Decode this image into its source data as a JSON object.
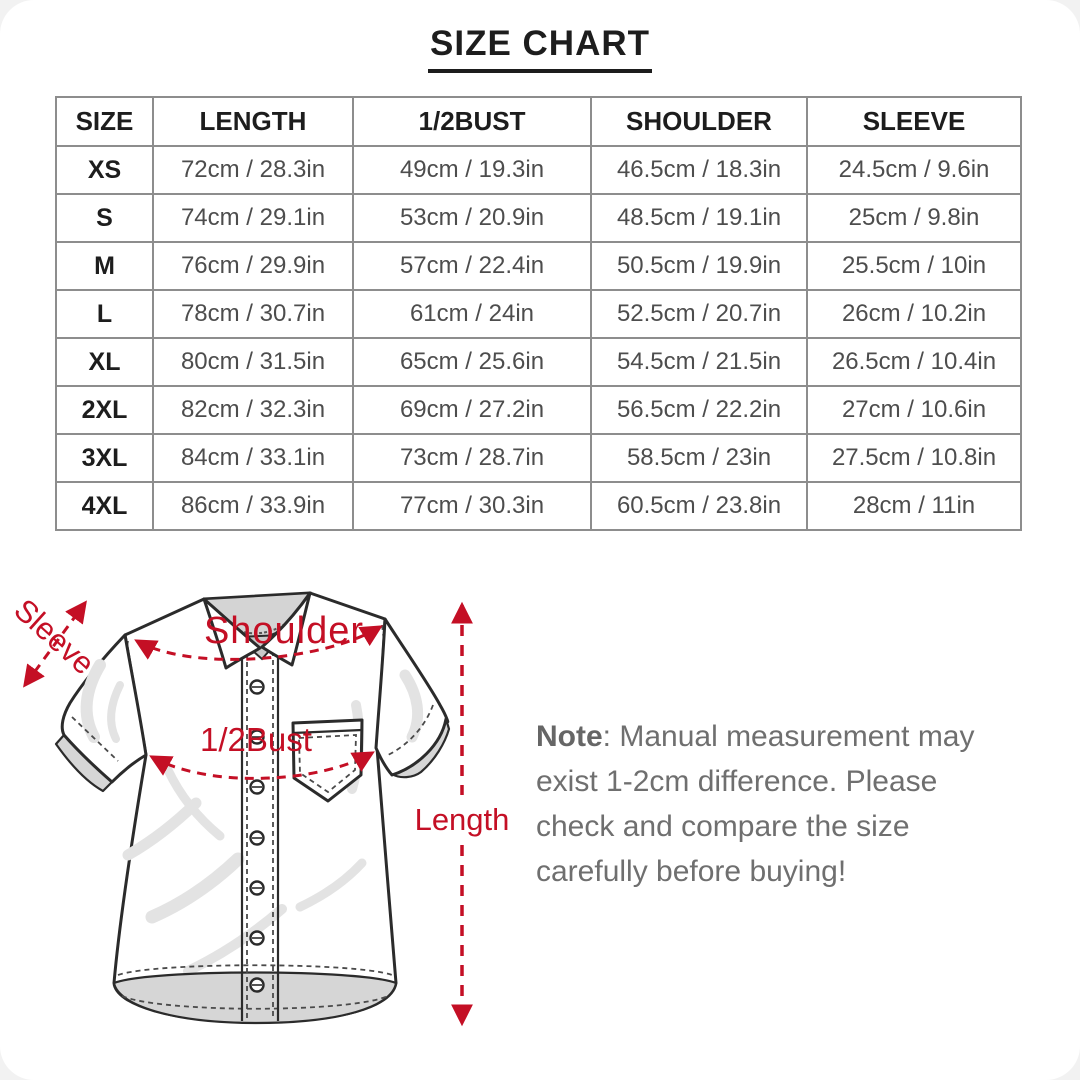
{
  "header": {
    "title": "SIZE CHART"
  },
  "size_table": {
    "columns": [
      "SIZE",
      "LENGTH",
      "1/2BUST",
      "SHOULDER",
      "SLEEVE"
    ],
    "rows": [
      [
        "XS",
        "72cm / 28.3in",
        "49cm / 19.3in",
        "46.5cm / 18.3in",
        "24.5cm / 9.6in"
      ],
      [
        "S",
        "74cm / 29.1in",
        "53cm / 20.9in",
        "48.5cm / 19.1in",
        "25cm / 9.8in"
      ],
      [
        "M",
        "76cm / 29.9in",
        "57cm / 22.4in",
        "50.5cm / 19.9in",
        "25.5cm / 10in"
      ],
      [
        "L",
        "78cm / 30.7in",
        "61cm / 24in",
        "52.5cm / 20.7in",
        "26cm / 10.2in"
      ],
      [
        "XL",
        "80cm / 31.5in",
        "65cm / 25.6in",
        "54.5cm / 21.5in",
        "26.5cm / 10.4in"
      ],
      [
        "2XL",
        "82cm / 32.3in",
        "69cm / 27.2in",
        "56.5cm / 22.2in",
        "27cm / 10.6in"
      ],
      [
        "3XL",
        "84cm / 33.1in",
        "73cm / 28.7in",
        "58.5cm / 23in",
        "27.5cm / 10.8in"
      ],
      [
        "4XL",
        "86cm / 33.9in",
        "77cm / 30.3in",
        "60.5cm / 23.8in",
        "28cm / 11in"
      ]
    ]
  },
  "diagram": {
    "labels": {
      "sleeve": "Sleeve",
      "shoulder": "Shoulder",
      "half_bust": "1/2Bust",
      "length": "Length"
    },
    "annotation_color": "#c40f25"
  },
  "note": {
    "label": "Note",
    "text": ": Manual measurement may exist 1-2cm difference. Please check and compare the size carefully before buying!"
  }
}
